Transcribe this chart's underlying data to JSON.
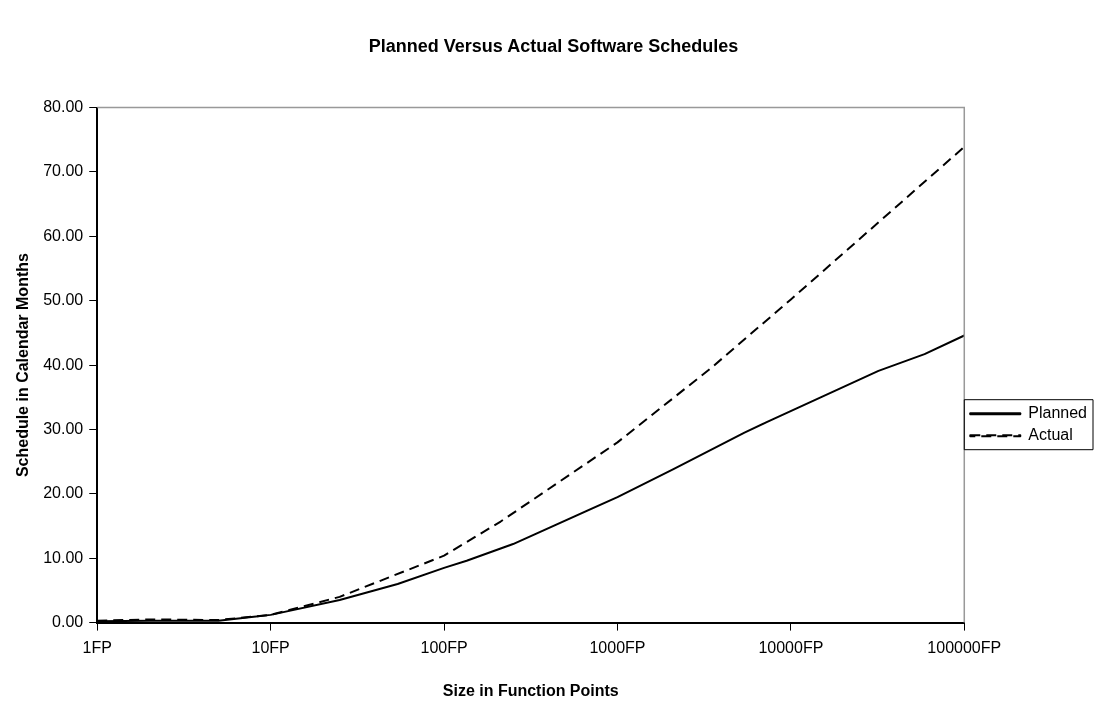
{
  "chart_data": {
    "type": "line",
    "title": "Planned Versus Actual Software Schedules",
    "xlabel": "Size in Function Points",
    "ylabel": "Schedule in Calendar Months",
    "log": "x",
    "xlim": [
      1,
      100000
    ],
    "xticks": [
      {
        "value": 1,
        "label": "1FP"
      },
      {
        "value": 10,
        "label": "10FP"
      },
      {
        "value": 100,
        "label": "100FP"
      },
      {
        "value": 1000,
        "label": "1000FP"
      },
      {
        "value": 10000,
        "label": "10000FP"
      },
      {
        "value": 100000,
        "label": "100000FP"
      }
    ],
    "ylim": [
      0,
      80
    ],
    "yticks": [
      {
        "value": 0,
        "label": "0.00"
      },
      {
        "value": 10,
        "label": "10.00"
      },
      {
        "value": 20,
        "label": "20.00"
      },
      {
        "value": 30,
        "label": "30.00"
      },
      {
        "value": 40,
        "label": "40.00"
      },
      {
        "value": 50,
        "label": "50.00"
      },
      {
        "value": 60,
        "label": "60.00"
      },
      {
        "value": 70,
        "label": "70.00"
      },
      {
        "value": 80,
        "label": "80.00"
      }
    ],
    "grid": false,
    "legend": "right",
    "marker": "none",
    "series": [
      {
        "name": "Planned",
        "color": "#000000",
        "line_style": "solid",
        "x": [
          1,
          2,
          5,
          10,
          25,
          54,
          100,
          135,
          250,
          1000,
          2090,
          5400,
          7200,
          32000,
          59000,
          100000
        ],
        "values": [
          0.2,
          0.3,
          0.3,
          1.2,
          3.5,
          6.0,
          8.5,
          9.6,
          12.2,
          19.5,
          23.8,
          29.5,
          31.1,
          39.1,
          41.7,
          44.6
        ]
      },
      {
        "name": "Actual",
        "color": "#000000",
        "line_style": "dashed",
        "x": [
          1,
          2,
          5,
          10,
          25,
          100,
          212,
          1000,
          3450,
          10000,
          17400,
          100000
        ],
        "values": [
          0.3,
          0.5,
          0.4,
          1.2,
          4.0,
          10.4,
          15.7,
          28.0,
          39.5,
          50.2,
          55.9,
          73.9
        ]
      }
    ]
  }
}
